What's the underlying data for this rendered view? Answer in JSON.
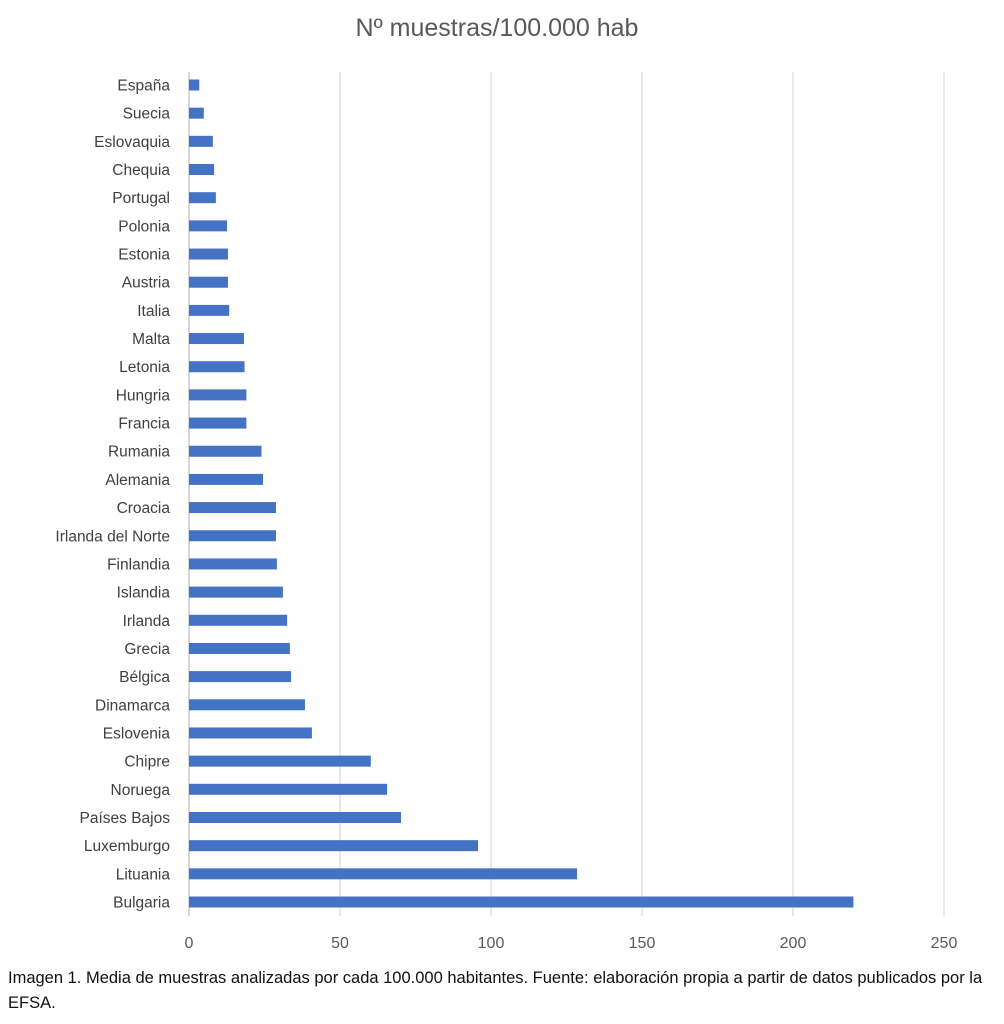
{
  "chart_data": {
    "type": "bar",
    "orientation": "horizontal",
    "title": "Nº muestras/100.000 hab",
    "xlabel": "",
    "ylabel": "",
    "xlim": [
      0,
      250
    ],
    "xticks": [
      0,
      50,
      100,
      150,
      200,
      250
    ],
    "grid": "vertical",
    "bar_color": "#4472C4",
    "categories": [
      "España",
      "Suecia",
      "Eslovaquia",
      "Chequia",
      "Portugal",
      "Polonia",
      "Estonia",
      "Austria",
      "Italia",
      "Malta",
      "Letonia",
      "Hungria",
      "Francia",
      "Rumania",
      "Alemania",
      "Croacia",
      "Irlanda del Norte",
      "Finlandia",
      "Islandia",
      "Irlanda",
      "Grecia",
      "Bélgica",
      "Dinamarca",
      "Eslovenia",
      "Chipre",
      "Noruega",
      "Países Bajos",
      "Luxemburgo",
      "Lituania",
      "Bulgaria"
    ],
    "values": [
      3.4,
      4.9,
      7.9,
      8.3,
      8.9,
      12.6,
      12.9,
      12.9,
      13.3,
      18.2,
      18.4,
      19.0,
      19.0,
      24.0,
      24.5,
      28.8,
      28.8,
      29.1,
      31.1,
      32.5,
      33.4,
      33.8,
      38.4,
      40.7,
      60.2,
      65.6,
      70.2,
      95.7,
      128.5,
      220.0
    ]
  },
  "caption": "Imagen 1. Media de muestras analizadas por cada 100.000 habitantes. Fuente: elaboración propia a partir de datos publicados por la EFSA."
}
